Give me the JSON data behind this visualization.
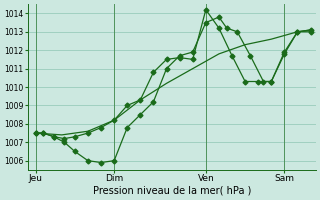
{
  "background_color": "#cce8e0",
  "grid_color": "#99ccbb",
  "line_color": "#1a6b1a",
  "marker_color": "#1a6b1a",
  "xlabel": "Pression niveau de la mer( hPa )",
  "ylim": [
    1005.5,
    1014.5
  ],
  "yticks": [
    1006,
    1007,
    1008,
    1009,
    1010,
    1011,
    1012,
    1013,
    1014
  ],
  "xtick_labels": [
    "Jeu",
    "Dim",
    "Ven",
    "Sam"
  ],
  "xtick_positions": [
    0.0,
    3.0,
    6.5,
    9.5
  ],
  "vline_positions": [
    0.0,
    3.0,
    6.5,
    9.5
  ],
  "xlim": [
    -0.3,
    10.7
  ],
  "series1_x": [
    0.0,
    0.3,
    0.7,
    1.1,
    1.5,
    2.0,
    2.5,
    3.0,
    3.5,
    4.0,
    4.5,
    5.0,
    5.5,
    6.0,
    6.5,
    7.0,
    7.3,
    7.7,
    8.2,
    8.7,
    9.0,
    9.5,
    10.0,
    10.5
  ],
  "series1_y": [
    1007.5,
    1007.5,
    1007.3,
    1007.0,
    1006.5,
    1006.0,
    1005.9,
    1006.0,
    1007.8,
    1008.5,
    1009.2,
    1011.0,
    1011.7,
    1011.9,
    1013.5,
    1013.8,
    1013.2,
    1013.0,
    1011.7,
    1010.3,
    1010.3,
    1011.8,
    1013.0,
    1013.1
  ],
  "series2_x": [
    0.0,
    0.3,
    0.7,
    1.1,
    1.5,
    2.0,
    2.5,
    3.0,
    3.5,
    4.0,
    4.5,
    5.0,
    5.5,
    6.0,
    6.5,
    7.0,
    7.5,
    8.0,
    8.5,
    9.0,
    9.5,
    10.0,
    10.5
  ],
  "series2_y": [
    1007.5,
    1007.5,
    1007.3,
    1007.2,
    1007.3,
    1007.5,
    1007.8,
    1008.2,
    1009.0,
    1009.3,
    1010.8,
    1011.5,
    1011.6,
    1011.5,
    1014.2,
    1013.2,
    1011.7,
    1010.3,
    1010.3,
    1010.3,
    1011.9,
    1013.0,
    1013.0
  ],
  "series3_x": [
    0.0,
    1.0,
    2.0,
    3.0,
    4.0,
    5.0,
    6.0,
    7.0,
    8.0,
    9.0,
    10.0,
    10.5
  ],
  "series3_y": [
    1007.5,
    1007.4,
    1007.6,
    1008.2,
    1009.3,
    1010.2,
    1011.0,
    1011.8,
    1012.3,
    1012.6,
    1013.0,
    1013.1
  ]
}
